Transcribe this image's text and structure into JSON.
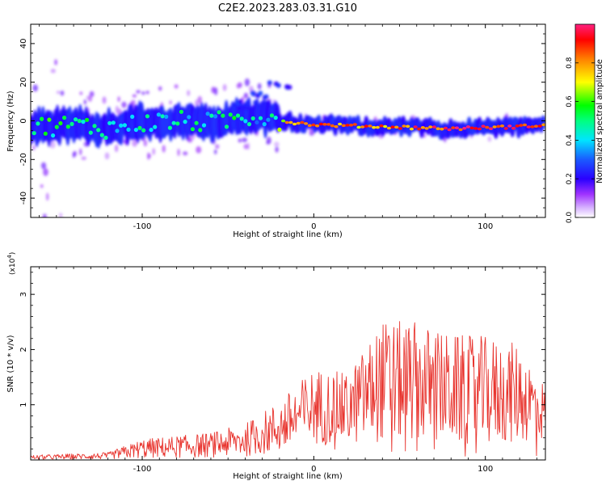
{
  "title": "C2E2.2023.283.03.31.G10",
  "chart_data": [
    {
      "type": "heatmap",
      "xlabel": "Height of straight line (km)",
      "ylabel": "Frequency (Hz)",
      "xlim": [
        -165,
        135
      ],
      "ylim": [
        -50,
        50
      ],
      "xticks": [
        -100,
        0,
        100
      ],
      "yticks": [
        -40,
        -20,
        0,
        20,
        40
      ],
      "colorbar": {
        "label": "Normalized spectral amplitude",
        "range": [
          0,
          1
        ],
        "ticks": [
          0.0,
          0.2,
          0.4,
          0.6,
          0.8
        ],
        "tick_labels": [
          "0.0",
          "0.2",
          "0.4",
          "0.6",
          "0.8"
        ]
      },
      "ridge": [
        {
          "x": -160,
          "y": -3,
          "amp": 0.5
        },
        {
          "x": -140,
          "y": -2,
          "amp": 0.5
        },
        {
          "x": -120,
          "y": -4,
          "amp": 0.45
        },
        {
          "x": -100,
          "y": -1,
          "amp": 0.5
        },
        {
          "x": -80,
          "y": 0,
          "amp": 0.45
        },
        {
          "x": -60,
          "y": -1,
          "amp": 0.45
        },
        {
          "x": -40,
          "y": 2,
          "amp": 0.45
        },
        {
          "x": -25,
          "y": 3,
          "amp": 0.35
        },
        {
          "x": -20,
          "y": 0,
          "amp": 0.7
        },
        {
          "x": 0,
          "y": -2,
          "amp": 0.8
        },
        {
          "x": 40,
          "y": -3,
          "amp": 0.8
        },
        {
          "x": 80,
          "y": -4,
          "amp": 0.9
        },
        {
          "x": 120,
          "y": -3,
          "amp": 0.9
        },
        {
          "x": 135,
          "y": -2,
          "amp": 0.8
        }
      ],
      "branch": [
        {
          "x": -40,
          "y": 8
        },
        {
          "x": -30,
          "y": 14
        },
        {
          "x": -20,
          "y": 19
        }
      ]
    },
    {
      "type": "line",
      "xlabel": "Height of straight line (km)",
      "ylabel": "SNR (10 * v/v)",
      "y_multiplier": "(x10",
      "y_multiplier_exp": "4",
      "xlim": [
        -165,
        135
      ],
      "ylim": [
        0,
        3.5
      ],
      "xticks": [
        -100,
        0,
        100
      ],
      "yticks": [
        1,
        2,
        3
      ],
      "color": "#e8342e",
      "envelope": [
        {
          "x": -165,
          "base": 0.02,
          "amp": 0.08
        },
        {
          "x": -120,
          "base": 0.05,
          "amp": 0.12
        },
        {
          "x": -100,
          "base": 0.1,
          "amp": 0.35
        },
        {
          "x": -60,
          "base": 0.15,
          "amp": 0.45
        },
        {
          "x": -40,
          "base": 0.2,
          "amp": 0.6
        },
        {
          "x": -20,
          "base": 0.4,
          "amp": 0.95
        },
        {
          "x": 0,
          "base": 0.9,
          "amp": 1.4
        },
        {
          "x": 20,
          "base": 0.9,
          "amp": 1.3
        },
        {
          "x": 40,
          "base": 1.1,
          "amp": 2.2
        },
        {
          "x": 60,
          "base": 1.0,
          "amp": 2.2
        },
        {
          "x": 80,
          "base": 0.9,
          "amp": 2.0
        },
        {
          "x": 100,
          "base": 0.8,
          "amp": 2.0
        },
        {
          "x": 120,
          "base": 1.0,
          "amp": 1.8
        },
        {
          "x": 135,
          "base": 1.2,
          "amp": 1.0
        }
      ]
    }
  ]
}
